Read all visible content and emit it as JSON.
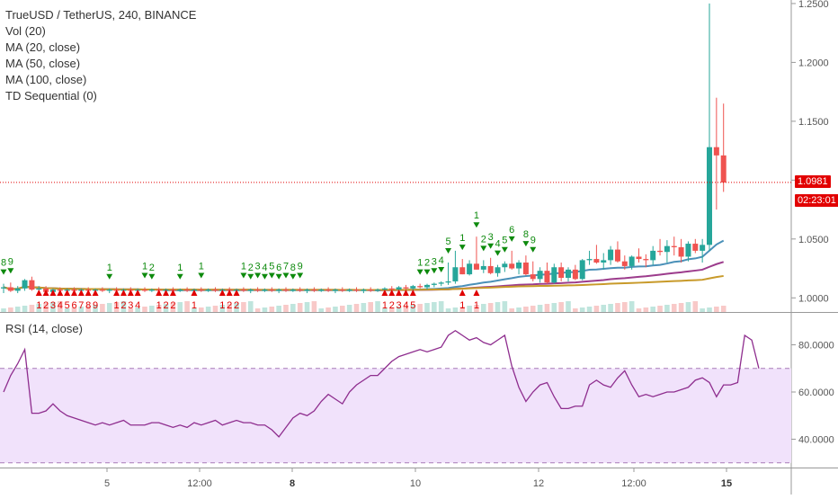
{
  "legend": {
    "title": "TrueUSD / TetherUS, 240, BINANCE",
    "indicators": [
      "Vol (20)",
      "MA (20, close)",
      "MA (50, close)",
      "MA (100, close)",
      "TD Sequential (0)"
    ]
  },
  "rsi_legend": "RSI (14, close)",
  "price_tag": "1.0981",
  "countdown_tag": "02:23:01",
  "colors": {
    "up": "#26a69a",
    "down": "#ef5350",
    "up_fill_bright": "#2e7d32",
    "down_fill_bright": "#e20000",
    "ma20": "#4a90b8",
    "ma50": "#9c3c8c",
    "ma100": "#c89a2a",
    "rsi": "#8e2d8e",
    "rsi_band": "#f1e2fb",
    "td_buy": "#0d8a0d",
    "td_sell": "#e00000"
  },
  "chart_data": [
    {
      "type": "candlestick",
      "title": "TrueUSD / TetherUS, 240, BINANCE",
      "x_ticks": [
        "5",
        "12:00",
        "8",
        "10",
        "12",
        "12:00",
        "15"
      ],
      "x_ticks_bold": [
        false,
        false,
        true,
        false,
        false,
        false,
        true
      ],
      "y_ticks": [
        1.0,
        1.05,
        1.1,
        1.15,
        1.2,
        1.25
      ],
      "y_tick_labels": [
        "1.0000",
        "1.0500",
        "1.1000",
        "1.1500",
        "1.2000",
        "1.2500"
      ],
      "ylim": [
        0.988,
        1.253
      ],
      "last_price": 1.0981,
      "candles": [
        [
          1.008,
          1.012,
          1.004,
          1.009
        ],
        [
          1.009,
          1.013,
          1.005,
          1.006
        ],
        [
          1.006,
          1.01,
          1.004,
          1.008
        ],
        [
          1.008,
          1.016,
          1.006,
          1.015
        ],
        [
          1.015,
          1.018,
          1.006,
          1.007
        ],
        [
          1.007,
          1.01,
          1.005,
          1.008
        ],
        [
          1.008,
          1.01,
          1.004,
          1.005
        ],
        [
          1.005,
          1.008,
          1.004,
          1.007
        ],
        [
          1.007,
          1.009,
          1.005,
          1.006
        ],
        [
          1.006,
          1.008,
          1.005,
          1.007
        ],
        [
          1.007,
          1.009,
          1.005,
          1.006
        ],
        [
          1.006,
          1.008,
          1.004,
          1.007
        ],
        [
          1.007,
          1.009,
          1.005,
          1.006
        ],
        [
          1.006,
          1.008,
          1.005,
          1.007
        ],
        [
          1.007,
          1.009,
          1.005,
          1.006
        ],
        [
          1.006,
          1.008,
          1.004,
          1.007
        ],
        [
          1.007,
          1.009,
          1.005,
          1.006
        ],
        [
          1.006,
          1.008,
          1.005,
          1.007
        ],
        [
          1.007,
          1.009,
          1.005,
          1.006
        ],
        [
          1.006,
          1.008,
          1.004,
          1.007
        ],
        [
          1.007,
          1.009,
          1.005,
          1.006
        ],
        [
          1.006,
          1.008,
          1.005,
          1.007
        ],
        [
          1.007,
          1.009,
          1.005,
          1.006
        ],
        [
          1.006,
          1.008,
          1.004,
          1.007
        ],
        [
          1.007,
          1.009,
          1.005,
          1.006
        ],
        [
          1.006,
          1.008,
          1.005,
          1.007
        ],
        [
          1.007,
          1.009,
          1.005,
          1.006
        ],
        [
          1.006,
          1.008,
          1.004,
          1.007
        ],
        [
          1.007,
          1.009,
          1.005,
          1.006
        ],
        [
          1.006,
          1.008,
          1.005,
          1.007
        ],
        [
          1.007,
          1.009,
          1.005,
          1.006
        ],
        [
          1.006,
          1.008,
          1.004,
          1.007
        ],
        [
          1.007,
          1.009,
          1.005,
          1.006
        ],
        [
          1.006,
          1.008,
          1.005,
          1.007
        ],
        [
          1.007,
          1.009,
          1.005,
          1.006
        ],
        [
          1.006,
          1.008,
          1.004,
          1.007
        ],
        [
          1.007,
          1.009,
          1.005,
          1.006
        ],
        [
          1.006,
          1.008,
          1.005,
          1.007
        ],
        [
          1.007,
          1.009,
          1.005,
          1.006
        ],
        [
          1.006,
          1.008,
          1.004,
          1.007
        ],
        [
          1.007,
          1.009,
          1.005,
          1.006
        ],
        [
          1.006,
          1.008,
          1.005,
          1.007
        ],
        [
          1.007,
          1.009,
          1.005,
          1.006
        ],
        [
          1.006,
          1.008,
          1.004,
          1.007
        ],
        [
          1.007,
          1.009,
          1.005,
          1.006
        ],
        [
          1.006,
          1.008,
          1.005,
          1.007
        ],
        [
          1.007,
          1.009,
          1.005,
          1.006
        ],
        [
          1.006,
          1.008,
          1.004,
          1.007
        ],
        [
          1.007,
          1.009,
          1.005,
          1.006
        ],
        [
          1.006,
          1.008,
          1.005,
          1.007
        ],
        [
          1.007,
          1.009,
          1.005,
          1.006
        ],
        [
          1.006,
          1.008,
          1.004,
          1.007
        ],
        [
          1.007,
          1.009,
          1.005,
          1.006
        ],
        [
          1.006,
          1.008,
          1.005,
          1.007
        ],
        [
          1.007,
          1.009,
          1.005,
          1.008
        ],
        [
          1.008,
          1.01,
          1.006,
          1.007
        ],
        [
          1.007,
          1.01,
          1.006,
          1.009
        ],
        [
          1.009,
          1.011,
          1.007,
          1.008
        ],
        [
          1.008,
          1.011,
          1.006,
          1.01
        ],
        [
          1.01,
          1.012,
          1.008,
          1.009
        ],
        [
          1.009,
          1.012,
          1.007,
          1.011
        ],
        [
          1.011,
          1.013,
          1.009,
          1.012
        ],
        [
          1.012,
          1.014,
          1.01,
          1.013
        ],
        [
          1.013,
          1.03,
          1.011,
          1.014
        ],
        [
          1.014,
          1.04,
          1.012,
          1.026
        ],
        [
          1.026,
          1.033,
          1.02,
          1.02
        ],
        [
          1.02,
          1.032,
          1.019,
          1.029
        ],
        [
          1.029,
          1.052,
          1.024,
          1.024
        ],
        [
          1.024,
          1.032,
          1.021,
          1.027
        ],
        [
          1.027,
          1.034,
          1.02,
          1.021
        ],
        [
          1.021,
          1.028,
          1.018,
          1.026
        ],
        [
          1.026,
          1.031,
          1.022,
          1.029
        ],
        [
          1.029,
          1.04,
          1.024,
          1.025
        ],
        [
          1.025,
          1.032,
          1.02,
          1.03
        ],
        [
          1.03,
          1.036,
          1.019,
          1.02
        ],
        [
          1.02,
          1.031,
          1.014,
          1.016
        ],
        [
          1.016,
          1.026,
          1.013,
          1.023
        ],
        [
          1.023,
          1.03,
          1.012,
          1.013
        ],
        [
          1.013,
          1.029,
          1.012,
          1.026
        ],
        [
          1.026,
          1.03,
          1.014,
          1.017
        ],
        [
          1.017,
          1.026,
          1.014,
          1.024
        ],
        [
          1.024,
          1.028,
          1.015,
          1.016
        ],
        [
          1.016,
          1.033,
          1.015,
          1.032
        ],
        [
          1.032,
          1.04,
          1.028,
          1.033
        ],
        [
          1.033,
          1.045,
          1.029,
          1.03
        ],
        [
          1.03,
          1.038,
          1.024,
          1.032
        ],
        [
          1.032,
          1.044,
          1.028,
          1.041
        ],
        [
          1.041,
          1.048,
          1.03,
          1.031
        ],
        [
          1.031,
          1.036,
          1.024,
          1.027
        ],
        [
          1.027,
          1.036,
          1.024,
          1.035
        ],
        [
          1.035,
          1.042,
          1.03,
          1.033
        ],
        [
          1.033,
          1.037,
          1.026,
          1.032
        ],
        [
          1.032,
          1.044,
          1.028,
          1.04
        ],
        [
          1.04,
          1.05,
          1.036,
          1.039
        ],
        [
          1.039,
          1.049,
          1.03,
          1.044
        ],
        [
          1.044,
          1.052,
          1.036,
          1.043
        ],
        [
          1.043,
          1.05,
          1.03,
          1.035
        ],
        [
          1.035,
          1.048,
          1.031,
          1.046
        ],
        [
          1.046,
          1.05,
          1.038,
          1.04
        ],
        [
          1.04,
          1.05,
          1.03,
          1.045
        ],
        [
          1.045,
          1.25,
          1.04,
          1.128
        ],
        [
          1.128,
          1.17,
          1.075,
          1.121
        ],
        [
          1.121,
          1.165,
          1.09,
          1.098
        ]
      ],
      "moving_averages": [
        {
          "name": "MA (20, close)",
          "period": 20
        },
        {
          "name": "MA (50, close)",
          "period": 50
        },
        {
          "name": "MA (100, close)",
          "period": 100
        }
      ],
      "td_sequential_buy_counts": [
        [
          0,
          "8"
        ],
        [
          1,
          "9"
        ],
        [
          15,
          "1"
        ],
        [
          20,
          "1"
        ],
        [
          21,
          "2"
        ],
        [
          25,
          "1"
        ],
        [
          28,
          "1"
        ],
        [
          34,
          "1"
        ],
        [
          35,
          "2"
        ],
        [
          36,
          "3"
        ],
        [
          37,
          "4"
        ],
        [
          38,
          "5"
        ],
        [
          39,
          "6"
        ],
        [
          40,
          "7"
        ],
        [
          41,
          "8"
        ],
        [
          42,
          "9"
        ],
        [
          59,
          "1"
        ],
        [
          60,
          "2"
        ],
        [
          61,
          "3"
        ],
        [
          62,
          "4"
        ],
        [
          63,
          "5"
        ],
        [
          65,
          "1"
        ],
        [
          67,
          "1"
        ],
        [
          68,
          "2"
        ],
        [
          69,
          "3"
        ],
        [
          70,
          "4"
        ],
        [
          71,
          "5"
        ],
        [
          72,
          "6"
        ],
        [
          74,
          "8"
        ],
        [
          75,
          "9"
        ]
      ],
      "td_sequential_sell_counts": [
        [
          5,
          "1"
        ],
        [
          6,
          "2"
        ],
        [
          7,
          "3"
        ],
        [
          8,
          "4"
        ],
        [
          9,
          "5"
        ],
        [
          10,
          "6"
        ],
        [
          11,
          "7"
        ],
        [
          12,
          "8"
        ],
        [
          13,
          "9"
        ],
        [
          16,
          "1"
        ],
        [
          17,
          "2"
        ],
        [
          18,
          "3"
        ],
        [
          19,
          "4"
        ],
        [
          22,
          "1"
        ],
        [
          23,
          "2"
        ],
        [
          24,
          "2"
        ],
        [
          27,
          "1"
        ],
        [
          31,
          "1"
        ],
        [
          32,
          "2"
        ],
        [
          33,
          "2"
        ],
        [
          54,
          "1"
        ],
        [
          55,
          "2"
        ],
        [
          56,
          "3"
        ],
        [
          57,
          "4"
        ],
        [
          58,
          "5"
        ],
        [
          65,
          "1"
        ],
        [
          67,
          "1"
        ]
      ]
    },
    {
      "type": "line",
      "title": "RSI (14, close)",
      "y_ticks": [
        40,
        60,
        80
      ],
      "y_tick_labels": [
        "40.0000",
        "60.0000",
        "80.0000"
      ],
      "ylim": [
        28,
        92
      ],
      "band": [
        30,
        70
      ],
      "values": [
        60,
        67,
        72,
        78,
        51,
        51,
        52,
        55,
        52,
        50,
        49,
        48,
        47,
        46,
        47,
        46,
        47,
        48,
        46,
        46,
        46,
        47,
        47,
        46,
        45,
        46,
        45,
        47,
        46,
        47,
        48,
        46,
        47,
        48,
        47,
        47,
        46,
        46,
        44,
        41,
        45,
        49,
        51,
        50,
        52,
        56,
        59,
        57,
        55,
        60,
        63,
        65,
        67,
        67,
        70,
        73,
        75,
        76,
        77,
        78,
        77,
        78,
        79,
        84,
        86,
        84,
        82,
        83,
        81,
        80,
        82,
        84,
        71,
        62,
        56,
        60,
        63,
        64,
        58,
        53,
        53,
        54,
        54,
        63,
        65,
        63,
        62,
        66,
        69,
        63,
        58,
        59,
        58,
        59,
        60,
        60,
        61,
        62,
        65,
        66,
        64,
        58,
        63,
        63,
        64,
        84,
        82,
        70
      ]
    }
  ]
}
